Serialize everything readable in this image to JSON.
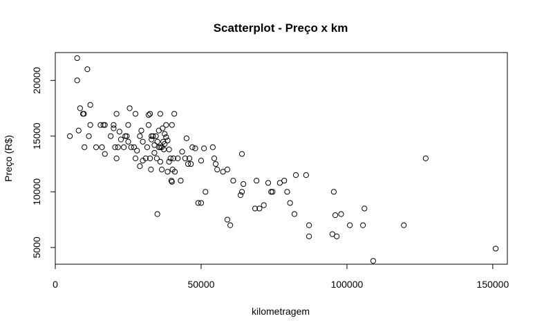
{
  "chart_data": {
    "type": "scatter",
    "title": "Scatterplot - Preço x km",
    "xlabel": "kilometragem",
    "ylabel": "Preço (R$)",
    "xlim": [
      0,
      155000
    ],
    "ylim": [
      3500,
      22500
    ],
    "x_ticks": [
      {
        "value": 0,
        "label": "0"
      },
      {
        "value": 50000,
        "label": "50000"
      },
      {
        "value": 100000,
        "label": "100000"
      },
      {
        "value": 150000,
        "label": "150000"
      }
    ],
    "y_ticks": [
      {
        "value": 5000,
        "label": "5000"
      },
      {
        "value": 10000,
        "label": "10000"
      },
      {
        "value": 15000,
        "label": "15000"
      },
      {
        "value": 20000,
        "label": "20000"
      }
    ],
    "grid": false,
    "series": [
      {
        "points": [
          [
            5000,
            15000
          ],
          [
            7500,
            22000
          ],
          [
            7500,
            20000
          ],
          [
            8000,
            15500
          ],
          [
            8500,
            17500
          ],
          [
            9500,
            17000
          ],
          [
            9800,
            17000
          ],
          [
            10000,
            14000
          ],
          [
            11000,
            21000
          ],
          [
            11500,
            15000
          ],
          [
            12000,
            16000
          ],
          [
            12000,
            17800
          ],
          [
            14000,
            14000
          ],
          [
            15500,
            16000
          ],
          [
            16000,
            14000
          ],
          [
            16500,
            16000
          ],
          [
            17000,
            16000
          ],
          [
            17000,
            13400
          ],
          [
            19000,
            15000
          ],
          [
            20000,
            16000
          ],
          [
            20000,
            15700
          ],
          [
            20500,
            14000
          ],
          [
            21000,
            17000
          ],
          [
            21000,
            13000
          ],
          [
            21500,
            14000
          ],
          [
            22000,
            15400
          ],
          [
            22500,
            14700
          ],
          [
            23500,
            14000
          ],
          [
            24000,
            15000
          ],
          [
            24500,
            15000
          ],
          [
            25000,
            16000
          ],
          [
            25000,
            14500
          ],
          [
            25500,
            17500
          ],
          [
            26000,
            14000
          ],
          [
            27000,
            14000
          ],
          [
            27500,
            13000
          ],
          [
            27500,
            17000
          ],
          [
            28000,
            13700
          ],
          [
            29000,
            15000
          ],
          [
            29000,
            12300
          ],
          [
            29500,
            15500
          ],
          [
            30000,
            12800
          ],
          [
            30000,
            14500
          ],
          [
            31000,
            13000
          ],
          [
            31500,
            14000
          ],
          [
            32000,
            16900
          ],
          [
            32000,
            16000
          ],
          [
            32500,
            17000
          ],
          [
            32500,
            13000
          ],
          [
            32800,
            12000
          ],
          [
            33000,
            14700
          ],
          [
            33000,
            15000
          ],
          [
            33500,
            15000
          ],
          [
            34000,
            13500
          ],
          [
            34000,
            14200
          ],
          [
            34500,
            15000
          ],
          [
            34800,
            13000
          ],
          [
            35000,
            8000
          ],
          [
            35000,
            14500
          ],
          [
            35500,
            14000
          ],
          [
            35500,
            15500
          ],
          [
            36000,
            17000
          ],
          [
            36000,
            12700
          ],
          [
            36000,
            14000
          ],
          [
            36500,
            12000
          ],
          [
            36500,
            14000
          ],
          [
            36800,
            15700
          ],
          [
            37000,
            14500
          ],
          [
            37200,
            13800
          ],
          [
            37500,
            15200
          ],
          [
            37500,
            14300
          ],
          [
            38000,
            16000
          ],
          [
            38000,
            14900
          ],
          [
            38500,
            11800
          ],
          [
            38500,
            14600
          ],
          [
            39000,
            13800
          ],
          [
            39000,
            12700
          ],
          [
            39500,
            13000
          ],
          [
            39800,
            11000
          ],
          [
            40000,
            16000
          ],
          [
            40000,
            10900
          ],
          [
            40200,
            12000
          ],
          [
            40500,
            13000
          ],
          [
            40800,
            17000
          ],
          [
            41000,
            11800
          ],
          [
            42000,
            13000
          ],
          [
            43000,
            11000
          ],
          [
            43500,
            13600
          ],
          [
            44500,
            13000
          ],
          [
            45000,
            14800
          ],
          [
            45500,
            12500
          ],
          [
            46000,
            13000
          ],
          [
            46500,
            12500
          ],
          [
            47000,
            14000
          ],
          [
            48000,
            13900
          ],
          [
            49000,
            9000
          ],
          [
            50000,
            9000
          ],
          [
            50000,
            12800
          ],
          [
            51000,
            13900
          ],
          [
            51500,
            10000
          ],
          [
            54000,
            14000
          ],
          [
            54500,
            13000
          ],
          [
            55000,
            12500
          ],
          [
            55500,
            12000
          ],
          [
            57500,
            11800
          ],
          [
            59000,
            7500
          ],
          [
            59000,
            12000
          ],
          [
            60000,
            7000
          ],
          [
            61000,
            11000
          ],
          [
            63500,
            9700
          ],
          [
            64000,
            10000
          ],
          [
            64000,
            13400
          ],
          [
            64500,
            10700
          ],
          [
            68500,
            8500
          ],
          [
            69000,
            11000
          ],
          [
            70000,
            8500
          ],
          [
            71500,
            8800
          ],
          [
            73000,
            10800
          ],
          [
            74000,
            10000
          ],
          [
            74500,
            10000
          ],
          [
            77000,
            10800
          ],
          [
            78500,
            11000
          ],
          [
            79500,
            10000
          ],
          [
            80500,
            9000
          ],
          [
            82000,
            8000
          ],
          [
            82500,
            11500
          ],
          [
            86000,
            11500
          ],
          [
            87000,
            7000
          ],
          [
            87000,
            6000
          ],
          [
            95000,
            6200
          ],
          [
            95500,
            10000
          ],
          [
            96000,
            7900
          ],
          [
            96500,
            6000
          ],
          [
            98000,
            8000
          ],
          [
            101000,
            7000
          ],
          [
            105500,
            7000
          ],
          [
            106000,
            8500
          ],
          [
            109000,
            3800
          ],
          [
            119500,
            7000
          ],
          [
            127000,
            13000
          ],
          [
            151000,
            4900
          ]
        ]
      }
    ]
  }
}
